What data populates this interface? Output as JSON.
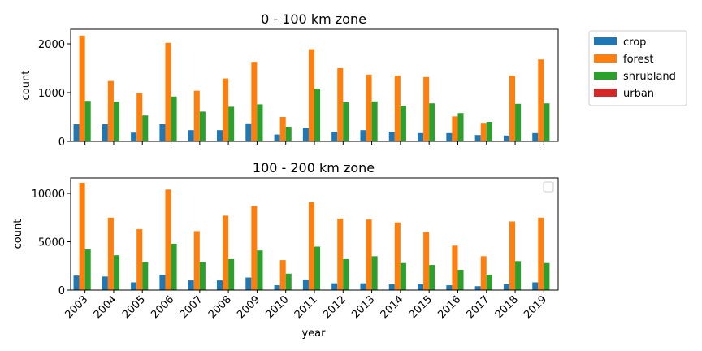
{
  "chart_data": [
    {
      "type": "bar",
      "title": "0 - 100 km zone",
      "xlabel": "",
      "ylabel": "count",
      "ylim": [
        0,
        2300
      ],
      "yticks": [
        0,
        1000,
        2000
      ],
      "categories": [
        "2003",
        "2004",
        "2005",
        "2006",
        "2007",
        "2008",
        "2009",
        "2010",
        "2011",
        "2012",
        "2013",
        "2014",
        "2015",
        "2016",
        "2017",
        "2018",
        "2019"
      ],
      "series": [
        {
          "name": "crop",
          "color": "#1f77b4",
          "values": [
            350,
            350,
            180,
            350,
            230,
            230,
            370,
            140,
            280,
            200,
            230,
            200,
            170,
            170,
            130,
            120,
            170
          ]
        },
        {
          "name": "forest",
          "color": "#ff7f0e",
          "values": [
            2170,
            1240,
            990,
            2020,
            1040,
            1290,
            1630,
            500,
            1890,
            1500,
            1370,
            1350,
            1320,
            510,
            380,
            1350,
            1680
          ]
        },
        {
          "name": "shrubland",
          "color": "#2ca02c",
          "values": [
            830,
            810,
            530,
            920,
            610,
            710,
            760,
            300,
            1080,
            800,
            820,
            730,
            780,
            580,
            400,
            770,
            780
          ]
        },
        {
          "name": "urban",
          "color": "#d62728",
          "values": [
            0,
            0,
            0,
            0,
            0,
            0,
            0,
            0,
            0,
            0,
            0,
            0,
            0,
            0,
            0,
            0,
            0
          ]
        }
      ],
      "legend_position": "outside-right"
    },
    {
      "type": "bar",
      "title": "100 - 200 km zone",
      "xlabel": "year",
      "ylabel": "count",
      "ylim": [
        0,
        11600
      ],
      "yticks": [
        0,
        5000,
        10000
      ],
      "categories": [
        "2003",
        "2004",
        "2005",
        "2006",
        "2007",
        "2008",
        "2009",
        "2010",
        "2011",
        "2012",
        "2013",
        "2014",
        "2015",
        "2016",
        "2017",
        "2018",
        "2019"
      ],
      "series": [
        {
          "color": "#1f77b4",
          "values": [
            1500,
            1400,
            800,
            1600,
            1000,
            1000,
            1300,
            500,
            1100,
            700,
            700,
            600,
            600,
            500,
            400,
            600,
            800
          ]
        },
        {
          "color": "#ff7f0e",
          "values": [
            11100,
            7500,
            6300,
            10400,
            6100,
            7700,
            8700,
            3100,
            9100,
            7400,
            7300,
            7000,
            6000,
            4600,
            3500,
            7100,
            7500
          ]
        },
        {
          "color": "#2ca02c",
          "values": [
            4200,
            3600,
            2900,
            4800,
            2900,
            3200,
            4100,
            1700,
            4500,
            3200,
            3500,
            2800,
            2600,
            2100,
            1600,
            3000,
            2800
          ]
        },
        {
          "color": "#d62728",
          "values": [
            0,
            0,
            0,
            0,
            0,
            0,
            0,
            0,
            0,
            0,
            0,
            0,
            0,
            0,
            0,
            0,
            0
          ]
        }
      ],
      "legend_position": "top-right (empty)"
    }
  ]
}
